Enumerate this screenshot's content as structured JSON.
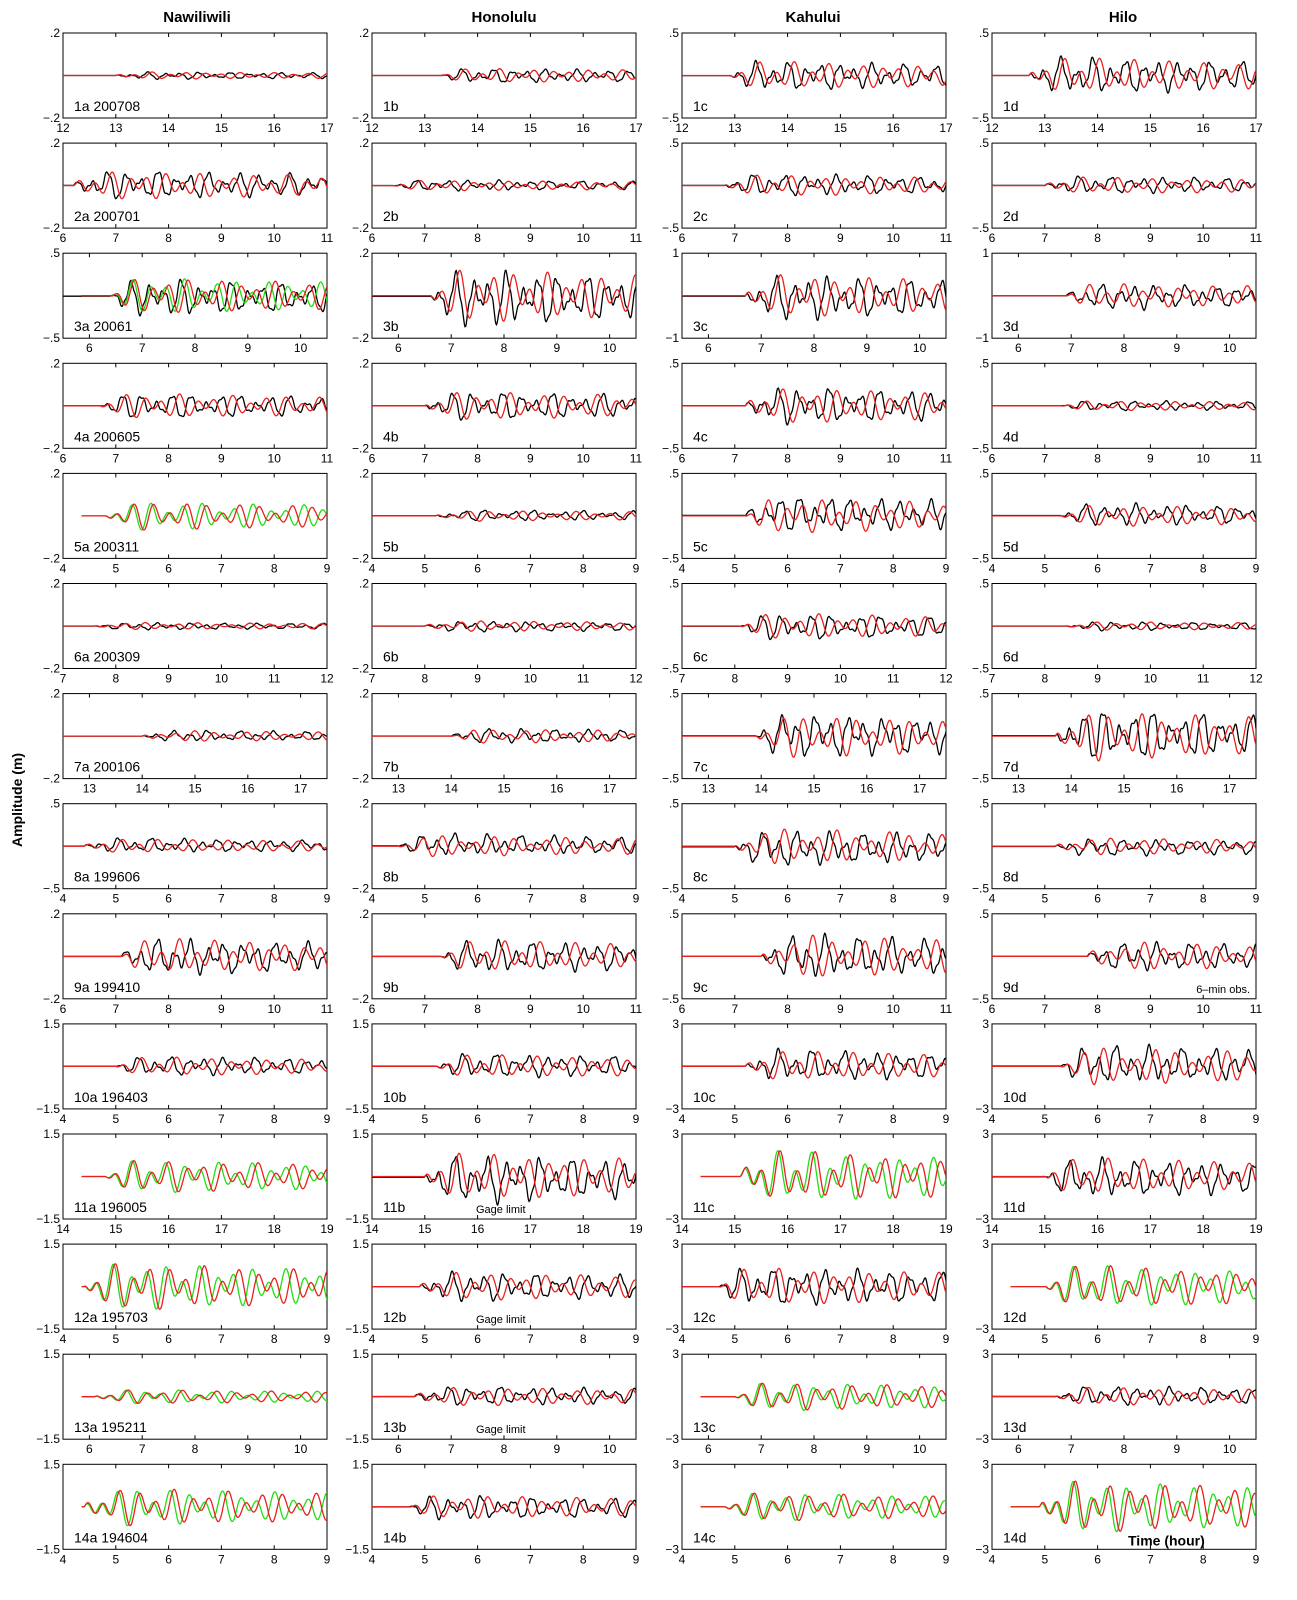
{
  "ylabel": "Amplitude (m)",
  "time_label": "Time (hour)",
  "columns": [
    "Nawiliwili",
    "Honolulu",
    "Kahului",
    "Hilo"
  ],
  "colors": {
    "observed": "#000000",
    "model": "#e8201e",
    "model_alt": "#22dd11"
  },
  "chart_data": [
    {
      "row": 1,
      "event": "200708",
      "xlim": [
        12,
        17
      ],
      "xticks": [
        12,
        13,
        14,
        15,
        16,
        17
      ],
      "ylim": [
        [
          -0.2,
          0.2
        ],
        [
          -0.2,
          0.2
        ],
        [
          -0.5,
          0.5
        ],
        [
          -0.5,
          0.5
        ]
      ],
      "arrival": [
        13.0,
        13.3,
        12.9,
        12.7
      ],
      "amp": [
        0.02,
        0.04,
        0.2,
        0.25
      ],
      "green": [
        false,
        false,
        false,
        false
      ],
      "black": [
        true,
        true,
        true,
        true
      ],
      "labels": [
        "1a",
        "1b",
        "1c",
        "1d"
      ],
      "notes": [
        "",
        "",
        "",
        ""
      ]
    },
    {
      "row": 2,
      "event": "200701",
      "xlim": [
        6,
        11
      ],
      "xticks": [
        6,
        7,
        8,
        9,
        10,
        11
      ],
      "ylim": [
        [
          -0.2,
          0.2
        ],
        [
          -0.2,
          0.2
        ],
        [
          -0.5,
          0.5
        ],
        [
          -0.5,
          0.5
        ]
      ],
      "arrival": [
        6.2,
        6.4,
        6.8,
        7.0
      ],
      "amp": [
        0.08,
        0.03,
        0.15,
        0.12
      ],
      "green": [
        false,
        false,
        false,
        false
      ],
      "black": [
        true,
        true,
        true,
        true
      ],
      "labels": [
        "2a",
        "2b",
        "2c",
        "2d"
      ],
      "notes": [
        "",
        "",
        "",
        ""
      ]
    },
    {
      "row": 3,
      "event": "20061",
      "xlim": [
        5.5,
        10.5
      ],
      "xticks": [
        6,
        7,
        8,
        9,
        10
      ],
      "ylim": [
        [
          -0.5,
          0.5
        ],
        [
          -0.2,
          0.2
        ],
        [
          -1,
          1
        ],
        [
          -1,
          1
        ]
      ],
      "arrival": [
        6.4,
        6.6,
        6.7,
        6.9
      ],
      "amp": [
        0.25,
        0.15,
        0.6,
        0.35
      ],
      "green": [
        true,
        false,
        false,
        false
      ],
      "black": [
        true,
        true,
        true,
        true
      ],
      "labels": [
        "3a",
        "3b",
        "3c",
        "3d"
      ],
      "notes": [
        "",
        "",
        "",
        ""
      ]
    },
    {
      "row": 4,
      "event": "200605",
      "xlim": [
        6,
        11
      ],
      "xticks": [
        6,
        7,
        8,
        9,
        10,
        11
      ],
      "ylim": [
        [
          -0.2,
          0.2
        ],
        [
          -0.2,
          0.2
        ],
        [
          -0.5,
          0.5
        ],
        [
          -0.5,
          0.5
        ]
      ],
      "arrival": [
        6.7,
        7.0,
        7.2,
        7.3
      ],
      "amp": [
        0.07,
        0.08,
        0.25,
        0.07
      ],
      "green": [
        false,
        false,
        false,
        false
      ],
      "black": [
        true,
        true,
        true,
        true
      ],
      "labels": [
        "4a",
        "4b",
        "4c",
        "4d"
      ],
      "notes": [
        "",
        "",
        "",
        ""
      ]
    },
    {
      "row": 5,
      "event": "200311",
      "xlim": [
        4,
        9
      ],
      "xticks": [
        4,
        5,
        6,
        7,
        8,
        9
      ],
      "ylim": [
        [
          -0.2,
          0.2
        ],
        [
          -0.2,
          0.2
        ],
        [
          -0.5,
          0.5
        ],
        [
          -0.5,
          0.5
        ]
      ],
      "arrival": [
        4.8,
        5.2,
        5.2,
        5.3
      ],
      "amp": [
        0.08,
        0.03,
        0.25,
        0.15
      ],
      "green": [
        true,
        false,
        false,
        false
      ],
      "black": [
        false,
        true,
        true,
        true
      ],
      "labels": [
        "5a",
        "5b",
        "5c",
        "5d"
      ],
      "notes": [
        "",
        "",
        "",
        ""
      ]
    },
    {
      "row": 6,
      "event": "200309",
      "xlim": [
        7,
        12
      ],
      "xticks": [
        7,
        8,
        9,
        10,
        11,
        12
      ],
      "ylim": [
        [
          -0.2,
          0.2
        ],
        [
          -0.2,
          0.2
        ],
        [
          -0.5,
          0.5
        ],
        [
          -0.5,
          0.5
        ]
      ],
      "arrival": [
        7.6,
        8.0,
        8.1,
        8.4
      ],
      "amp": [
        0.02,
        0.03,
        0.18,
        0.06
      ],
      "green": [
        false,
        false,
        false,
        false
      ],
      "black": [
        true,
        true,
        true,
        true
      ],
      "labels": [
        "6a",
        "6b",
        "6c",
        "6d"
      ],
      "notes": [
        "",
        "",
        "",
        ""
      ]
    },
    {
      "row": 7,
      "event": "200106",
      "xlim": [
        12.5,
        17.5
      ],
      "xticks": [
        13,
        14,
        15,
        16,
        17
      ],
      "ylim": [
        [
          -0.2,
          0.2
        ],
        [
          -0.2,
          0.2
        ],
        [
          -0.5,
          0.5
        ],
        [
          -0.5,
          0.5
        ]
      ],
      "arrival": [
        14.0,
        14.0,
        13.9,
        13.7
      ],
      "amp": [
        0.03,
        0.04,
        0.3,
        0.35
      ],
      "green": [
        false,
        false,
        false,
        false
      ],
      "black": [
        true,
        true,
        true,
        true
      ],
      "labels": [
        "7a",
        "7b",
        "7c",
        "7d"
      ],
      "notes": [
        "",
        "",
        "",
        ""
      ]
    },
    {
      "row": 8,
      "event": "199606",
      "xlim": [
        4,
        9
      ],
      "xticks": [
        4,
        5,
        6,
        7,
        8,
        9
      ],
      "ylim": [
        [
          -0.5,
          0.5
        ],
        [
          -0.2,
          0.2
        ],
        [
          -0.5,
          0.5
        ],
        [
          -0.5,
          0.5
        ]
      ],
      "arrival": [
        4.4,
        4.5,
        5.0,
        5.2
      ],
      "amp": [
        0.1,
        0.06,
        0.25,
        0.12
      ],
      "green": [
        false,
        false,
        false,
        false
      ],
      "black": [
        true,
        true,
        true,
        true
      ],
      "labels": [
        "8a",
        "8b",
        "8c",
        "8d"
      ],
      "notes": [
        "",
        "",
        "",
        ""
      ]
    },
    {
      "row": 9,
      "event": "199410",
      "xlim": [
        6,
        11
      ],
      "xticks": [
        6,
        7,
        8,
        9,
        10,
        11
      ],
      "ylim": [
        [
          -0.2,
          0.2
        ],
        [
          -0.2,
          0.2
        ],
        [
          -0.5,
          0.5
        ],
        [
          -0.5,
          0.5
        ]
      ],
      "arrival": [
        7.1,
        7.3,
        7.5,
        7.8
      ],
      "amp": [
        0.1,
        0.09,
        0.3,
        0.2
      ],
      "green": [
        false,
        false,
        false,
        false
      ],
      "black": [
        true,
        true,
        true,
        true
      ],
      "labels": [
        "9a",
        "9b",
        "9c",
        "9d"
      ],
      "notes": [
        "",
        "",
        "",
        "6–min obs."
      ]
    },
    {
      "row": 10,
      "event": "196403",
      "xlim": [
        4,
        9
      ],
      "xticks": [
        4,
        5,
        6,
        7,
        8,
        9
      ],
      "ylim": [
        [
          -1.5,
          1.5
        ],
        [
          -1.5,
          1.5
        ],
        [
          -3,
          3
        ],
        [
          -3,
          3
        ]
      ],
      "arrival": [
        5.0,
        5.2,
        5.2,
        5.3
      ],
      "amp": [
        0.4,
        0.5,
        1.3,
        1.6
      ],
      "green": [
        false,
        false,
        false,
        false
      ],
      "black": [
        true,
        true,
        true,
        true
      ],
      "labels": [
        "10a",
        "10b",
        "10c",
        "10d"
      ],
      "notes": [
        "",
        "",
        "",
        ""
      ]
    },
    {
      "row": 11,
      "event": "196005",
      "xlim": [
        14,
        19
      ],
      "xticks": [
        14,
        15,
        16,
        17,
        18,
        19
      ],
      "ylim": [
        [
          -1.5,
          1.5
        ],
        [
          -1.5,
          1.5
        ],
        [
          -3,
          3
        ],
        [
          -3,
          3
        ]
      ],
      "arrival": [
        14.8,
        15.0,
        15.1,
        15.0
      ],
      "amp": [
        0.7,
        1.0,
        2.2,
        1.6
      ],
      "green": [
        true,
        false,
        true,
        false
      ],
      "black": [
        false,
        true,
        false,
        true
      ],
      "labels": [
        "11a",
        "11b",
        "11c",
        "11d"
      ],
      "notes": [
        "",
        "Gage limit",
        "",
        ""
      ]
    },
    {
      "row": 12,
      "event": "195703",
      "xlim": [
        4,
        9
      ],
      "xticks": [
        4,
        5,
        6,
        7,
        8,
        9
      ],
      "ylim": [
        [
          -1.5,
          1.5
        ],
        [
          -1.5,
          1.5
        ],
        [
          -3,
          3
        ],
        [
          -3,
          3
        ]
      ],
      "arrival": [
        4.4,
        4.9,
        4.7,
        5.0
      ],
      "amp": [
        1.0,
        0.6,
        1.6,
        1.8
      ],
      "green": [
        true,
        false,
        false,
        true
      ],
      "black": [
        false,
        true,
        true,
        false
      ],
      "labels": [
        "12a",
        "12b",
        "12c",
        "12d"
      ],
      "notes": [
        "",
        "Gage limit",
        "",
        ""
      ]
    },
    {
      "row": 13,
      "event": "195211",
      "xlim": [
        5.5,
        10.5
      ],
      "xticks": [
        6,
        7,
        8,
        9,
        10
      ],
      "ylim": [
        [
          -1.5,
          1.5
        ],
        [
          -1.5,
          1.5
        ],
        [
          -3,
          3
        ],
        [
          -3,
          3
        ]
      ],
      "arrival": [
        6.1,
        6.3,
        6.5,
        6.7
      ],
      "amp": [
        0.3,
        0.4,
        1.2,
        0.8
      ],
      "green": [
        true,
        false,
        true,
        false
      ],
      "black": [
        false,
        true,
        false,
        true
      ],
      "labels": [
        "13a",
        "13b",
        "13c",
        "13d"
      ],
      "notes": [
        "",
        "Gage limit",
        "",
        ""
      ]
    },
    {
      "row": 14,
      "event": "194604",
      "xlim": [
        4,
        9
      ],
      "xticks": [
        4,
        5,
        6,
        7,
        8,
        9
      ],
      "ylim": [
        [
          -1.5,
          1.5
        ],
        [
          -1.5,
          1.5
        ],
        [
          -3,
          3
        ],
        [
          -3,
          3
        ]
      ],
      "arrival": [
        4.4,
        4.7,
        4.8,
        4.9
      ],
      "amp": [
        0.8,
        0.5,
        1.2,
        2.2
      ],
      "green": [
        true,
        false,
        true,
        true
      ],
      "black": [
        false,
        true,
        false,
        false
      ],
      "labels": [
        "14a",
        "14b",
        "14c",
        "14d"
      ],
      "notes": [
        "",
        "",
        "",
        ""
      ]
    }
  ]
}
